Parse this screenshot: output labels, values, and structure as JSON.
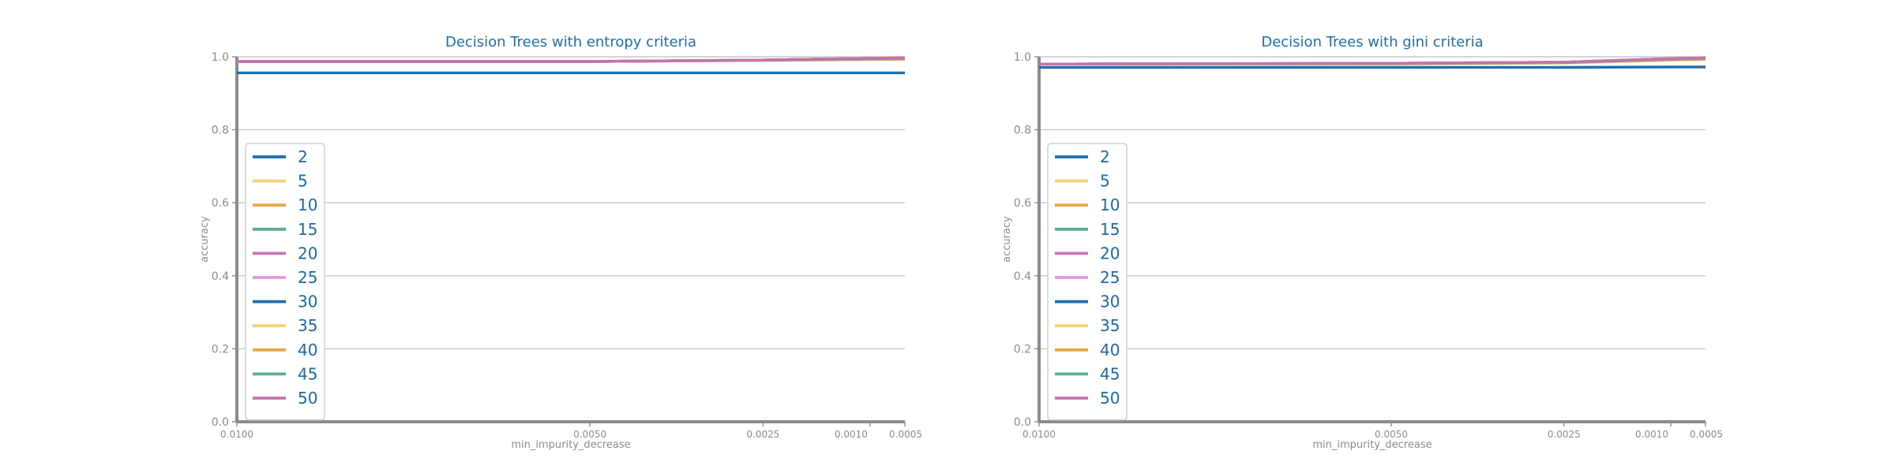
{
  "colors": {
    "title": "#1f6fae",
    "axis": "#8c8c8c",
    "tick_label": "#8c8c8c",
    "grid": "#c8c8c8",
    "legend_text": "#1a6aa8",
    "legend_border": "#d0d0d0"
  },
  "chart_data": [
    {
      "type": "line",
      "title": "Decision Trees with entropy criteria",
      "xlabel": "min_impurity_decrease",
      "ylabel": "accuracy",
      "x": [
        0.01,
        0.005,
        0.0025,
        0.001,
        0.0005
      ],
      "x_tick_labels": [
        "0.0100",
        "0.0050",
        "0.0025",
        "0.0010",
        "0.0005"
      ],
      "x_axis": "reversed",
      "ylim": [
        0.0,
        1.0
      ],
      "y_ticks": [
        0.0,
        0.2,
        0.4,
        0.6,
        0.8,
        1.0
      ],
      "y_tick_labels": [
        "0.0",
        "0.2",
        "0.4",
        "0.6",
        "0.8",
        "1.0"
      ],
      "grid": true,
      "legend_placement": "center-left",
      "series": [
        {
          "name": "2",
          "color": "#1f6fae",
          "values": [
            0.956,
            0.956,
            0.956,
            0.956,
            0.956
          ]
        },
        {
          "name": "5",
          "color": "#eed57a",
          "values": [
            0.987,
            0.987,
            0.99,
            0.992,
            0.992
          ]
        },
        {
          "name": "10",
          "color": "#eaa84a",
          "values": [
            0.987,
            0.987,
            0.99,
            0.993,
            0.994
          ]
        },
        {
          "name": "15",
          "color": "#5aae95",
          "values": [
            0.987,
            0.987,
            0.99,
            0.994,
            0.995
          ]
        },
        {
          "name": "20",
          "color": "#c772b0",
          "values": [
            0.987,
            0.987,
            0.991,
            0.995,
            0.996
          ]
        },
        {
          "name": "25",
          "color": "#e59ad6",
          "values": [
            0.987,
            0.987,
            0.991,
            0.996,
            0.997
          ]
        },
        {
          "name": "30",
          "color": "#1f6fae",
          "values": [
            0.987,
            0.987,
            0.991,
            0.996,
            0.997
          ]
        },
        {
          "name": "35",
          "color": "#eed57a",
          "values": [
            0.987,
            0.987,
            0.991,
            0.996,
            0.997
          ]
        },
        {
          "name": "40",
          "color": "#eaa84a",
          "values": [
            0.987,
            0.987,
            0.991,
            0.996,
            0.997
          ]
        },
        {
          "name": "45",
          "color": "#5aae95",
          "values": [
            0.987,
            0.987,
            0.991,
            0.996,
            0.997
          ]
        },
        {
          "name": "50",
          "color": "#c772b0",
          "values": [
            0.987,
            0.987,
            0.991,
            0.996,
            0.997
          ]
        }
      ]
    },
    {
      "type": "line",
      "title": "Decision Trees with gini criteria",
      "xlabel": "min_impurity_decrease",
      "ylabel": "accuracy",
      "x": [
        0.01,
        0.005,
        0.0025,
        0.001,
        0.0005
      ],
      "x_tick_labels": [
        "0.0100",
        "0.0050",
        "0.0025",
        "0.0010",
        "0.0005"
      ],
      "x_axis": "reversed",
      "ylim": [
        0.0,
        1.0
      ],
      "y_ticks": [
        0.0,
        0.2,
        0.4,
        0.6,
        0.8,
        1.0
      ],
      "y_tick_labels": [
        "0.0",
        "0.2",
        "0.4",
        "0.6",
        "0.8",
        "1.0"
      ],
      "grid": true,
      "legend_placement": "center-left",
      "series": [
        {
          "name": "2",
          "color": "#1f6fae",
          "values": [
            0.971,
            0.971,
            0.971,
            0.972,
            0.972
          ]
        },
        {
          "name": "5",
          "color": "#eed57a",
          "values": [
            0.98,
            0.98,
            0.983,
            0.99,
            0.992
          ]
        },
        {
          "name": "10",
          "color": "#eaa84a",
          "values": [
            0.98,
            0.981,
            0.984,
            0.992,
            0.994
          ]
        },
        {
          "name": "15",
          "color": "#5aae95",
          "values": [
            0.98,
            0.981,
            0.984,
            0.993,
            0.995
          ]
        },
        {
          "name": "20",
          "color": "#c772b0",
          "values": [
            0.98,
            0.982,
            0.985,
            0.994,
            0.996
          ]
        },
        {
          "name": "25",
          "color": "#e59ad6",
          "values": [
            0.98,
            0.982,
            0.985,
            0.995,
            0.997
          ]
        },
        {
          "name": "30",
          "color": "#1f6fae",
          "values": [
            0.98,
            0.982,
            0.985,
            0.995,
            0.997
          ]
        },
        {
          "name": "35",
          "color": "#eed57a",
          "values": [
            0.98,
            0.982,
            0.985,
            0.995,
            0.997
          ]
        },
        {
          "name": "40",
          "color": "#eaa84a",
          "values": [
            0.98,
            0.982,
            0.985,
            0.995,
            0.997
          ]
        },
        {
          "name": "45",
          "color": "#5aae95",
          "values": [
            0.98,
            0.982,
            0.985,
            0.995,
            0.997
          ]
        },
        {
          "name": "50",
          "color": "#c772b0",
          "values": [
            0.98,
            0.982,
            0.985,
            0.995,
            0.997
          ]
        }
      ]
    }
  ]
}
